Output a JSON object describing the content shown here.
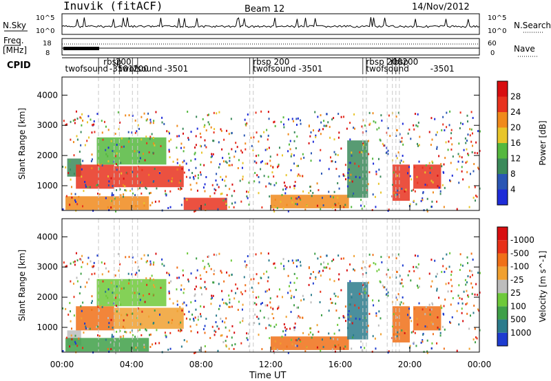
{
  "header": {
    "station": "Inuvik (fitACF)",
    "beam": "Beam 12",
    "date": "14/Nov/2012"
  },
  "noise_panel": {
    "left_label": "N.Sky",
    "tick_top": "10^5",
    "tick_bottom": "10^0",
    "right_label": "N.Search",
    "right_tick_top": "10^5",
    "right_tick_bottom": "10^0"
  },
  "freq_panel": {
    "left_label_1": "Freq.",
    "left_label_2": "[MHz]",
    "tick_top": "18",
    "tick_bottom": "8",
    "right_label": "Nave",
    "right_tick_top": "60",
    "right_tick_bottom": "0"
  },
  "cpid_panel": {
    "label": "CPID",
    "entries": [
      {
        "text": "twofsound",
        "time": 0.1
      },
      {
        "text": "rbsp",
        "time": 2.3
      },
      {
        "text": "-3501",
        "time": 2.65
      },
      {
        "text": "200",
        "time": 3.0
      },
      {
        "text": "twofsound",
        "time": 3.2
      },
      {
        "text": "200",
        "time": 4.0
      },
      {
        "text": "-3501",
        "time": 5.8
      },
      {
        "text": "rbsp 200",
        "time": 10.9
      },
      {
        "text": "twofsound -3501",
        "time": 10.9
      },
      {
        "text": "rbsp 200",
        "time": 17.4
      },
      {
        "text": "twofsound",
        "time": 17.4
      },
      {
        "text": "rbsp",
        "time": 18.8
      },
      {
        "text": "200",
        "time": 19.5
      },
      {
        "text": "-3501",
        "time": 21.1
      }
    ],
    "change_times": [
      2.1,
      3.0,
      3.3,
      4.05,
      4.35,
      10.8,
      11.0,
      17.3,
      17.5,
      18.7,
      19.0,
      19.2,
      19.4
    ]
  },
  "time_axis": {
    "label": "Time UT",
    "ticks": [
      "00:00",
      "04:00",
      "08:00",
      "12:00",
      "16:00",
      "20:00",
      "00:00"
    ]
  },
  "chart_data": [
    {
      "type": "heatmap",
      "name": "power",
      "xlabel": "Time UT",
      "ylabel": "Slant Range [km]",
      "xlim": [
        0,
        24
      ],
      "ylim": [
        180,
        4600
      ],
      "yticks": [
        "1000",
        "2000",
        "3000",
        "4000"
      ],
      "colorbar_label": "Power [dB]",
      "colorbar_ticks": [
        "4",
        "8",
        "12",
        "16",
        "20",
        "24",
        "28"
      ],
      "colorbar_colors": [
        "#1e2cd8",
        "#2a56b4",
        "#3b8a5a",
        "#55b83e",
        "#e8c52a",
        "#f08a1c",
        "#e8321e",
        "#d80e10"
      ],
      "regions": [
        {
          "t0": 0.3,
          "t1": 1.1,
          "r0": 1300,
          "r1": 1900,
          "v": "#3b8a5a"
        },
        {
          "t0": 0.8,
          "t1": 3.0,
          "r0": 900,
          "r1": 1700,
          "v": "#e8321e"
        },
        {
          "t0": 3.0,
          "t1": 7.0,
          "r0": 950,
          "r1": 1650,
          "v": "#e8321e"
        },
        {
          "t0": 2.0,
          "t1": 6.0,
          "r0": 1700,
          "r1": 2600,
          "v": "#55b83e"
        },
        {
          "t0": 0.2,
          "t1": 5.0,
          "r0": 200,
          "r1": 650,
          "v": "#f08a1c"
        },
        {
          "t0": 7.0,
          "t1": 9.5,
          "r0": 200,
          "r1": 600,
          "v": "#e8321e"
        },
        {
          "t0": 12.0,
          "t1": 16.5,
          "r0": 250,
          "r1": 700,
          "v": "#f08a1c"
        },
        {
          "t0": 16.4,
          "t1": 17.6,
          "r0": 600,
          "r1": 2500,
          "v": "#3b8a5a"
        },
        {
          "t0": 19.0,
          "t1": 20.0,
          "r0": 500,
          "r1": 1700,
          "v": "#e8321e"
        },
        {
          "t0": 20.2,
          "t1": 21.8,
          "r0": 900,
          "r1": 1700,
          "v": "#e8321e"
        }
      ]
    },
    {
      "type": "heatmap",
      "name": "velocity",
      "xlabel": "Time UT",
      "ylabel": "Slant Range [km]",
      "xlim": [
        0,
        24
      ],
      "ylim": [
        180,
        4600
      ],
      "yticks": [
        "1000",
        "2000",
        "3000",
        "4000"
      ],
      "colorbar_label": "Velocity [m s^-1]",
      "colorbar_ticks": [
        "1000",
        "500",
        "100",
        "25",
        "-25",
        "-100",
        "-500",
        "-1000"
      ],
      "colorbar_colors": [
        "#1e3cd0",
        "#2b7b8c",
        "#3fa048",
        "#6ec93a",
        "#bdbdbd",
        "#f0a030",
        "#f07018",
        "#e83018",
        "#d80e10"
      ],
      "regions": [
        {
          "t0": 0.3,
          "t1": 1.1,
          "r0": 400,
          "r1": 900,
          "v": "#bdbdbd"
        },
        {
          "t0": 0.8,
          "t1": 3.0,
          "r0": 900,
          "r1": 1700,
          "v": "#f07018"
        },
        {
          "t0": 3.0,
          "t1": 7.0,
          "r0": 950,
          "r1": 1650,
          "v": "#f0a030"
        },
        {
          "t0": 2.0,
          "t1": 6.0,
          "r0": 1700,
          "r1": 2600,
          "v": "#6ec93a"
        },
        {
          "t0": 0.2,
          "t1": 5.0,
          "r0": 200,
          "r1": 650,
          "v": "#3fa048"
        },
        {
          "t0": 12.0,
          "t1": 16.5,
          "r0": 250,
          "r1": 700,
          "v": "#f07018"
        },
        {
          "t0": 16.4,
          "t1": 17.6,
          "r0": 600,
          "r1": 2500,
          "v": "#2b7b8c"
        },
        {
          "t0": 19.0,
          "t1": 20.0,
          "r0": 500,
          "r1": 1700,
          "v": "#f07018"
        },
        {
          "t0": 20.2,
          "t1": 21.8,
          "r0": 900,
          "r1": 1700,
          "v": "#f07018"
        }
      ]
    }
  ]
}
